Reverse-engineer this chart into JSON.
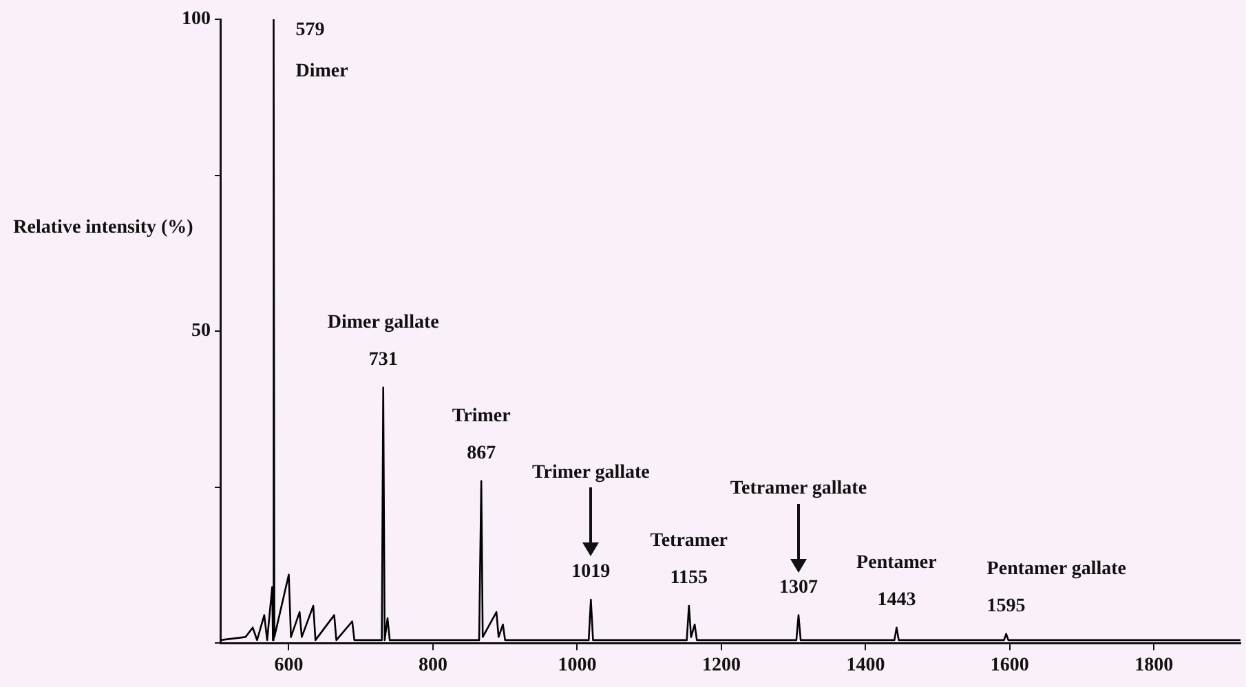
{
  "chart_data": {
    "type": "line",
    "ylabel": "Relative intensity (%)",
    "x": [
      505,
      540,
      550,
      556,
      566,
      570,
      577,
      578,
      579,
      580,
      600,
      603,
      615,
      618,
      634,
      637,
      663,
      666,
      688,
      691,
      729,
      731,
      733,
      737,
      740,
      780,
      864,
      867,
      869,
      888,
      891,
      897,
      900,
      1016,
      1019,
      1022,
      1152,
      1155,
      1158,
      1163,
      1166,
      1304,
      1307,
      1310,
      1440,
      1443,
      1446,
      1592,
      1595,
      1598,
      1750,
      1920
    ],
    "series": [
      {
        "color": "#000000",
        "values": [
          0.5,
          1,
          2.5,
          0.5,
          4.5,
          0.5,
          9,
          0.5,
          100,
          1,
          11,
          1,
          5,
          1,
          6,
          0.5,
          4.5,
          0.5,
          3.5,
          0.5,
          0.5,
          41,
          0.5,
          4,
          0.5,
          0.5,
          0.5,
          26,
          1,
          5,
          1,
          3,
          0.5,
          0.5,
          7,
          0.5,
          0.5,
          6,
          1,
          3,
          0.5,
          0.5,
          4.5,
          0.5,
          0.5,
          2.5,
          0.5,
          0.5,
          1.5,
          0.5,
          0.5,
          0.5
        ]
      }
    ],
    "xlim": [
      505,
      1920
    ],
    "xticks": [
      600,
      800,
      1000,
      1200,
      1400,
      1600,
      1800
    ],
    "ylim": [
      0,
      100
    ],
    "yticks": [
      {
        "value": 0,
        "label": null
      },
      {
        "value": 25,
        "label": null
      },
      50,
      {
        "value": 75,
        "label": null
      },
      100
    ],
    "annotations": [
      {
        "text": "Dimer",
        "x": 579,
        "y": 100
      },
      {
        "text": "579",
        "x": 579,
        "y": 100
      },
      {
        "text": "Dimer gallate",
        "x": 731,
        "y": 41
      },
      {
        "text": "731",
        "x": 731,
        "y": 41
      },
      {
        "text": "Trimer",
        "x": 867,
        "y": 26
      },
      {
        "text": "867",
        "x": 867,
        "y": 26
      },
      "Trimer gallate",
      {
        "text": "1019",
        "x": 1019,
        "y": 7
      },
      {
        "text": "Tetramer",
        "x": 1155,
        "y": 6
      },
      {
        "text": "1155",
        "x": 1155,
        "y": 6
      },
      "Tetramer gallate",
      {
        "text": "1307",
        "x": 1307,
        "y": 4.5
      },
      {
        "text": "Pentamer",
        "x": 1443,
        "y": 2.5
      },
      {
        "text": "1443",
        "x": 1443,
        "y": 2.5
      },
      {
        "text": "Pentamer gallate",
        "x": 1595,
        "y": 1.5
      },
      {
        "text": "1595",
        "x": 1595,
        "y": 1.5
      }
    ],
    "legend": false,
    "marker": "none",
    "grid": false
  }
}
